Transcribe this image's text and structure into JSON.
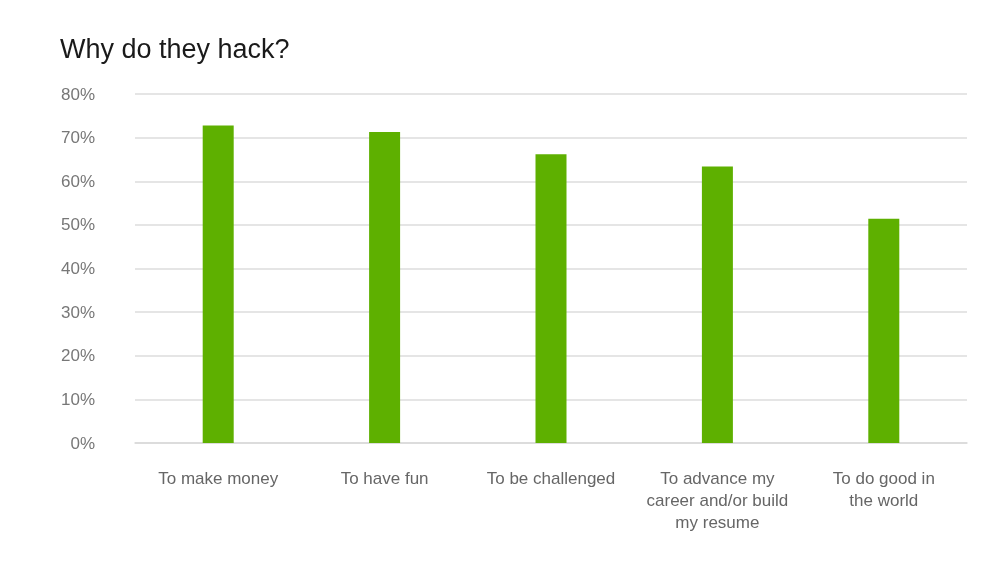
{
  "chart_data": {
    "type": "bar",
    "title": "Why do they hack?",
    "categories": [
      "To make money",
      "To have fun",
      "To be challenged",
      "To advance my\ncareer and/or build\nmy resume",
      "To do good in\nthe world"
    ],
    "values": [
      72.8,
      71.3,
      66.2,
      63.4,
      51.4
    ],
    "color": "#5eb000",
    "ylim": [
      0,
      80
    ],
    "yticks": [
      {
        "value": 0,
        "label": "0%"
      },
      {
        "value": 10,
        "label": "10%"
      },
      {
        "value": 20,
        "label": "20%"
      },
      {
        "value": 30,
        "label": "30%"
      },
      {
        "value": 40,
        "label": "40%"
      },
      {
        "value": 50,
        "label": "50%"
      },
      {
        "value": 60,
        "label": "60%"
      },
      {
        "value": 70,
        "label": "70%"
      },
      {
        "value": 80,
        "label": "80%"
      }
    ],
    "grid": "y"
  }
}
